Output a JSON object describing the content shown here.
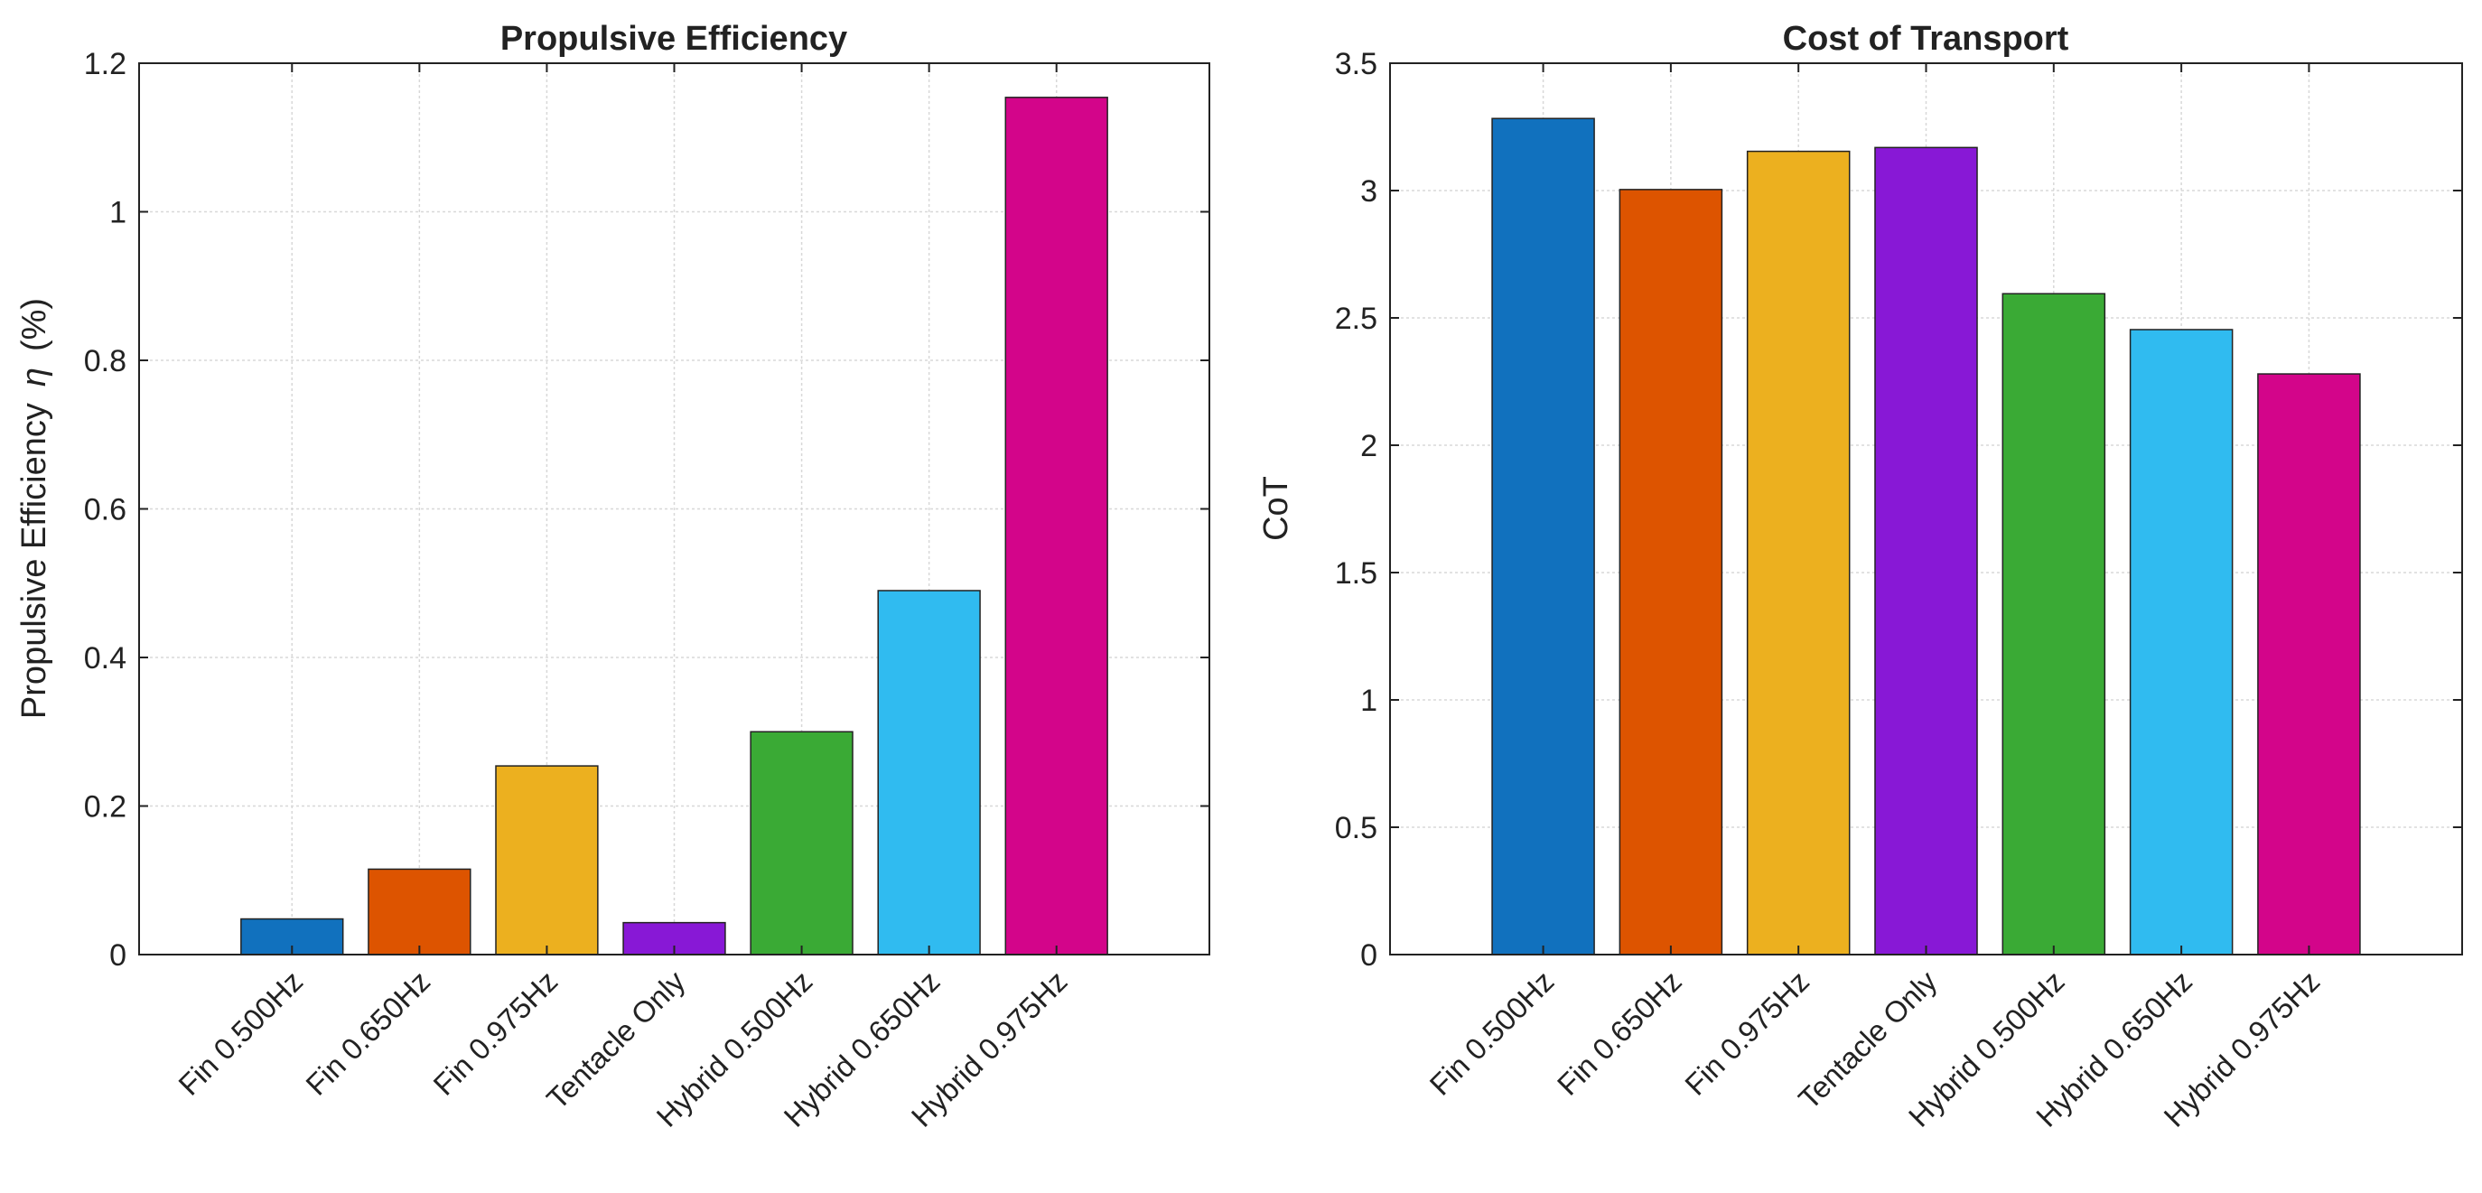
{
  "chart_data": [
    {
      "type": "bar",
      "title": "Propulsive Efficiency",
      "xlabel": "",
      "ylabel": "Propulsive  Efficiency",
      "ylabel_symbol": "η",
      "ylabel_unit": "(%)",
      "categories": [
        "Fin 0.500Hz",
        "Fin 0.650Hz",
        "Fin 0.975Hz",
        "Tentacle Only",
        "Hybrid 0.500Hz",
        "Hybrid 0.650Hz",
        "Hybrid 0.975Hz"
      ],
      "values": [
        0.048,
        0.115,
        0.254,
        0.043,
        0.3,
        0.49,
        1.154
      ],
      "colors": [
        "#1171be",
        "#dd5400",
        "#ecb01f",
        "#8818d6",
        "#3aaa35",
        "#30bbf0",
        "#d3058a"
      ],
      "ylim": [
        0,
        1.2
      ],
      "yticks": [
        0,
        0.2,
        0.4,
        0.6,
        0.8,
        1,
        1.2
      ],
      "ytick_labels": [
        "0",
        "0.2",
        "0.4",
        "0.6",
        "0.8",
        "1",
        "1.2"
      ],
      "grid": true
    },
    {
      "type": "bar",
      "title": "Cost of Transport",
      "xlabel": "",
      "ylabel": "CoT",
      "categories": [
        "Fin 0.500Hz",
        "Fin 0.650Hz",
        "Fin 0.975Hz",
        "Tentacle Only",
        "Hybrid 0.500Hz",
        "Hybrid 0.650Hz",
        "Hybrid 0.975Hz"
      ],
      "values": [
        3.283,
        3.004,
        3.154,
        3.169,
        2.595,
        2.454,
        2.28
      ],
      "colors": [
        "#1171be",
        "#dd5400",
        "#ecb01f",
        "#8818d6",
        "#3aaa35",
        "#30bbf0",
        "#d3058a"
      ],
      "ylim": [
        0,
        3.5
      ],
      "yticks": [
        0,
        0.5,
        1,
        1.5,
        2,
        2.5,
        3,
        3.5
      ],
      "ytick_labels": [
        "0",
        "0.5",
        "1",
        "1.5",
        "2",
        "2.5",
        "3",
        "3.5"
      ],
      "grid": true
    }
  ]
}
